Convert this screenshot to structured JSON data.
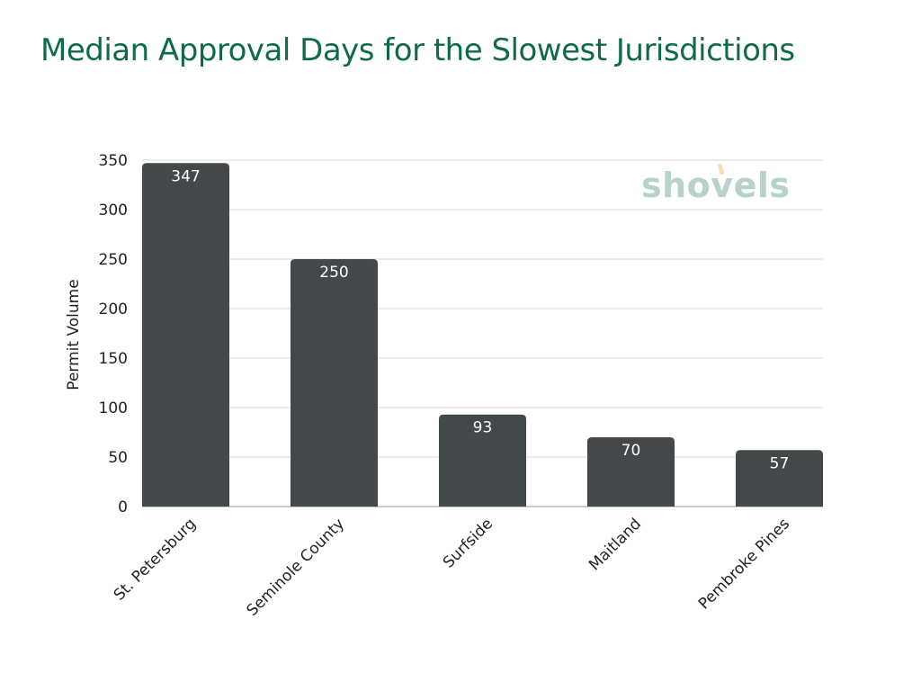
{
  "chart_data": {
    "type": "bar",
    "title": "Median Approval Days for the Slowest Jurisdictions",
    "xlabel": "",
    "ylabel": "Permit Volume",
    "categories": [
      "St. Petersburg",
      "Seminole County",
      "Surfside",
      "Maitland",
      "Pembroke Pines"
    ],
    "values": [
      347,
      250,
      93,
      70,
      57
    ],
    "ylim": [
      0,
      350
    ],
    "yticks": [
      0,
      50,
      100,
      150,
      200,
      250,
      300,
      350
    ],
    "grid": true,
    "bar_color": "#43484b",
    "title_color": "#0f6a4a"
  },
  "logo": {
    "text": "shovels"
  }
}
